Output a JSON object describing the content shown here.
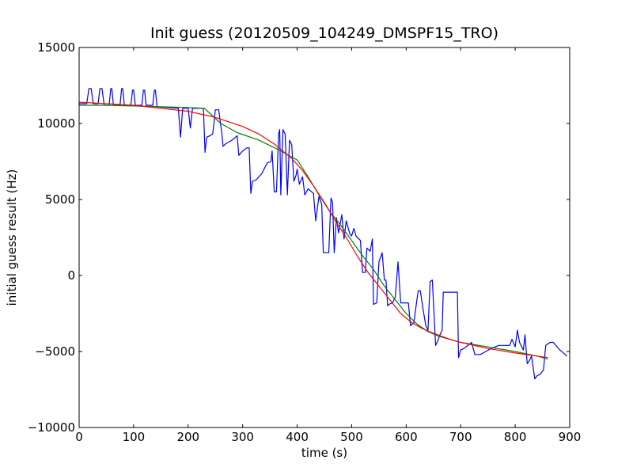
{
  "chart_data": {
    "type": "line",
    "title": "Init guess (20120509_104249_DMSPF15_TRO)",
    "xlabel": "time (s)",
    "ylabel": "initial guess result (Hz)",
    "xlim": [
      0,
      900
    ],
    "ylim": [
      -10000,
      15000
    ],
    "xticks": [
      0,
      100,
      200,
      300,
      400,
      500,
      600,
      700,
      800,
      900
    ],
    "yticks": [
      -10000,
      -5000,
      0,
      5000,
      10000,
      15000
    ],
    "grid": false,
    "legend": "none",
    "series": [
      {
        "color": "#0000ff",
        "points": [
          [
            0,
            11300
          ],
          [
            14,
            11300
          ],
          [
            18,
            12300
          ],
          [
            22,
            12300
          ],
          [
            26,
            11300
          ],
          [
            35,
            11300
          ],
          [
            38,
            12300
          ],
          [
            42,
            12300
          ],
          [
            46,
            11200
          ],
          [
            55,
            11200
          ],
          [
            58,
            12300
          ],
          [
            60,
            12300
          ],
          [
            63,
            11200
          ],
          [
            75,
            11200
          ],
          [
            78,
            12300
          ],
          [
            80,
            12300
          ],
          [
            83,
            11200
          ],
          [
            95,
            11200
          ],
          [
            98,
            12200
          ],
          [
            100,
            12200
          ],
          [
            103,
            11200
          ],
          [
            115,
            11200
          ],
          [
            118,
            12200
          ],
          [
            120,
            12200
          ],
          [
            123,
            11200
          ],
          [
            135,
            11200
          ],
          [
            138,
            12200
          ],
          [
            140,
            12200
          ],
          [
            143,
            11100
          ],
          [
            182,
            11000
          ],
          [
            186,
            9100
          ],
          [
            190,
            11000
          ],
          [
            200,
            11000
          ],
          [
            204,
            9700
          ],
          [
            208,
            11000
          ],
          [
            228,
            11000
          ],
          [
            231,
            8100
          ],
          [
            234,
            9100
          ],
          [
            240,
            9200
          ],
          [
            245,
            9300
          ],
          [
            250,
            10900
          ],
          [
            256,
            10900
          ],
          [
            262,
            9300
          ],
          [
            264,
            8500
          ],
          [
            270,
            8700
          ],
          [
            276,
            8800
          ],
          [
            284,
            9000
          ],
          [
            290,
            9200
          ],
          [
            293,
            7900
          ],
          [
            300,
            8200
          ],
          [
            308,
            8400
          ],
          [
            312,
            8400
          ],
          [
            315,
            5400
          ],
          [
            318,
            6200
          ],
          [
            325,
            6300
          ],
          [
            335,
            6700
          ],
          [
            345,
            7400
          ],
          [
            352,
            7500
          ],
          [
            354,
            8200
          ],
          [
            358,
            5500
          ],
          [
            362,
            5500
          ],
          [
            366,
            9300
          ],
          [
            368,
            9600
          ],
          [
            370,
            5300
          ],
          [
            374,
            9600
          ],
          [
            378,
            9300
          ],
          [
            382,
            5300
          ],
          [
            386,
            8900
          ],
          [
            390,
            8600
          ],
          [
            394,
            6200
          ],
          [
            398,
            6600
          ],
          [
            400,
            7000
          ],
          [
            404,
            6000
          ],
          [
            410,
            6500
          ],
          [
            414,
            5300
          ],
          [
            420,
            5700
          ],
          [
            430,
            5400
          ],
          [
            434,
            3600
          ],
          [
            440,
            5200
          ],
          [
            445,
            4700
          ],
          [
            448,
            1500
          ],
          [
            458,
            1500
          ],
          [
            462,
            5100
          ],
          [
            465,
            4800
          ],
          [
            468,
            1500
          ],
          [
            472,
            3800
          ],
          [
            476,
            2800
          ],
          [
            482,
            4000
          ],
          [
            486,
            2400
          ],
          [
            490,
            3600
          ],
          [
            493,
            3200
          ],
          [
            497,
            2700
          ],
          [
            500,
            2600
          ],
          [
            504,
            3100
          ],
          [
            508,
            2600
          ],
          [
            516,
            2300
          ],
          [
            520,
            200
          ],
          [
            525,
            200
          ],
          [
            528,
            1800
          ],
          [
            534,
            1600
          ],
          [
            538,
            2400
          ],
          [
            540,
            -1900
          ],
          [
            546,
            -1800
          ],
          [
            550,
            900
          ],
          [
            556,
            1500
          ],
          [
            560,
            -300
          ],
          [
            563,
            -300
          ],
          [
            566,
            -2000
          ],
          [
            568,
            -1900
          ],
          [
            575,
            -1800
          ],
          [
            580,
            -1400
          ],
          [
            585,
            900
          ],
          [
            590,
            -1800
          ],
          [
            600,
            -1800
          ],
          [
            604,
            -1800
          ],
          [
            608,
            -3300
          ],
          [
            614,
            -3100
          ],
          [
            622,
            -1000
          ],
          [
            626,
            -1000
          ],
          [
            630,
            -2000
          ],
          [
            636,
            -3300
          ],
          [
            640,
            -3600
          ],
          [
            644,
            -400
          ],
          [
            648,
            -300
          ],
          [
            654,
            -4600
          ],
          [
            658,
            -4300
          ],
          [
            662,
            -3900
          ],
          [
            666,
            -3600
          ],
          [
            668,
            -1100
          ],
          [
            680,
            -1100
          ],
          [
            694,
            -1100
          ],
          [
            696,
            -5400
          ],
          [
            700,
            -4900
          ],
          [
            706,
            -4800
          ],
          [
            720,
            -4400
          ],
          [
            726,
            -5200
          ],
          [
            736,
            -5200
          ],
          [
            746,
            -5000
          ],
          [
            756,
            -4800
          ],
          [
            770,
            -4600
          ],
          [
            790,
            -4600
          ],
          [
            794,
            -4200
          ],
          [
            800,
            -4700
          ],
          [
            804,
            -3600
          ],
          [
            808,
            -4400
          ],
          [
            815,
            -4900
          ],
          [
            818,
            -3900
          ],
          [
            822,
            -5800
          ],
          [
            826,
            -5600
          ],
          [
            830,
            -5300
          ],
          [
            836,
            -6800
          ],
          [
            840,
            -6600
          ],
          [
            846,
            -6500
          ],
          [
            852,
            -6200
          ],
          [
            856,
            -4600
          ],
          [
            864,
            -4400
          ],
          [
            870,
            -4400
          ],
          [
            882,
            -4900
          ],
          [
            895,
            -5300
          ]
        ]
      },
      {
        "color": "#008000",
        "points": [
          [
            0,
            11200
          ],
          [
            50,
            11200
          ],
          [
            100,
            11150
          ],
          [
            150,
            11100
          ],
          [
            200,
            11050
          ],
          [
            230,
            11000
          ],
          [
            260,
            10000
          ],
          [
            290,
            9400
          ],
          [
            330,
            8900
          ],
          [
            370,
            8200
          ],
          [
            400,
            7600
          ],
          [
            420,
            6500
          ],
          [
            440,
            5300
          ],
          [
            460,
            4200
          ],
          [
            480,
            3300
          ],
          [
            500,
            2300
          ],
          [
            520,
            1300
          ],
          [
            540,
            400
          ],
          [
            560,
            -700
          ],
          [
            580,
            -1600
          ],
          [
            600,
            -2500
          ],
          [
            620,
            -3200
          ],
          [
            640,
            -3700
          ],
          [
            660,
            -4000
          ],
          [
            700,
            -4400
          ],
          [
            750,
            -4700
          ],
          [
            800,
            -5000
          ],
          [
            840,
            -5300
          ],
          [
            860,
            -5500
          ]
        ]
      },
      {
        "color": "#ff0000",
        "points": [
          [
            0,
            11400
          ],
          [
            50,
            11300
          ],
          [
            100,
            11200
          ],
          [
            150,
            11000
          ],
          [
            200,
            10800
          ],
          [
            250,
            10400
          ],
          [
            300,
            9800
          ],
          [
            330,
            9300
          ],
          [
            360,
            8600
          ],
          [
            390,
            7700
          ],
          [
            410,
            6900
          ],
          [
            430,
            5900
          ],
          [
            450,
            4800
          ],
          [
            470,
            3600
          ],
          [
            490,
            2500
          ],
          [
            510,
            1300
          ],
          [
            530,
            200
          ],
          [
            550,
            -700
          ],
          [
            570,
            -1600
          ],
          [
            590,
            -2500
          ],
          [
            610,
            -3100
          ],
          [
            630,
            -3500
          ],
          [
            650,
            -3800
          ],
          [
            680,
            -4200
          ],
          [
            700,
            -4400
          ],
          [
            750,
            -4800
          ],
          [
            800,
            -5100
          ],
          [
            860,
            -5400
          ]
        ]
      }
    ]
  }
}
